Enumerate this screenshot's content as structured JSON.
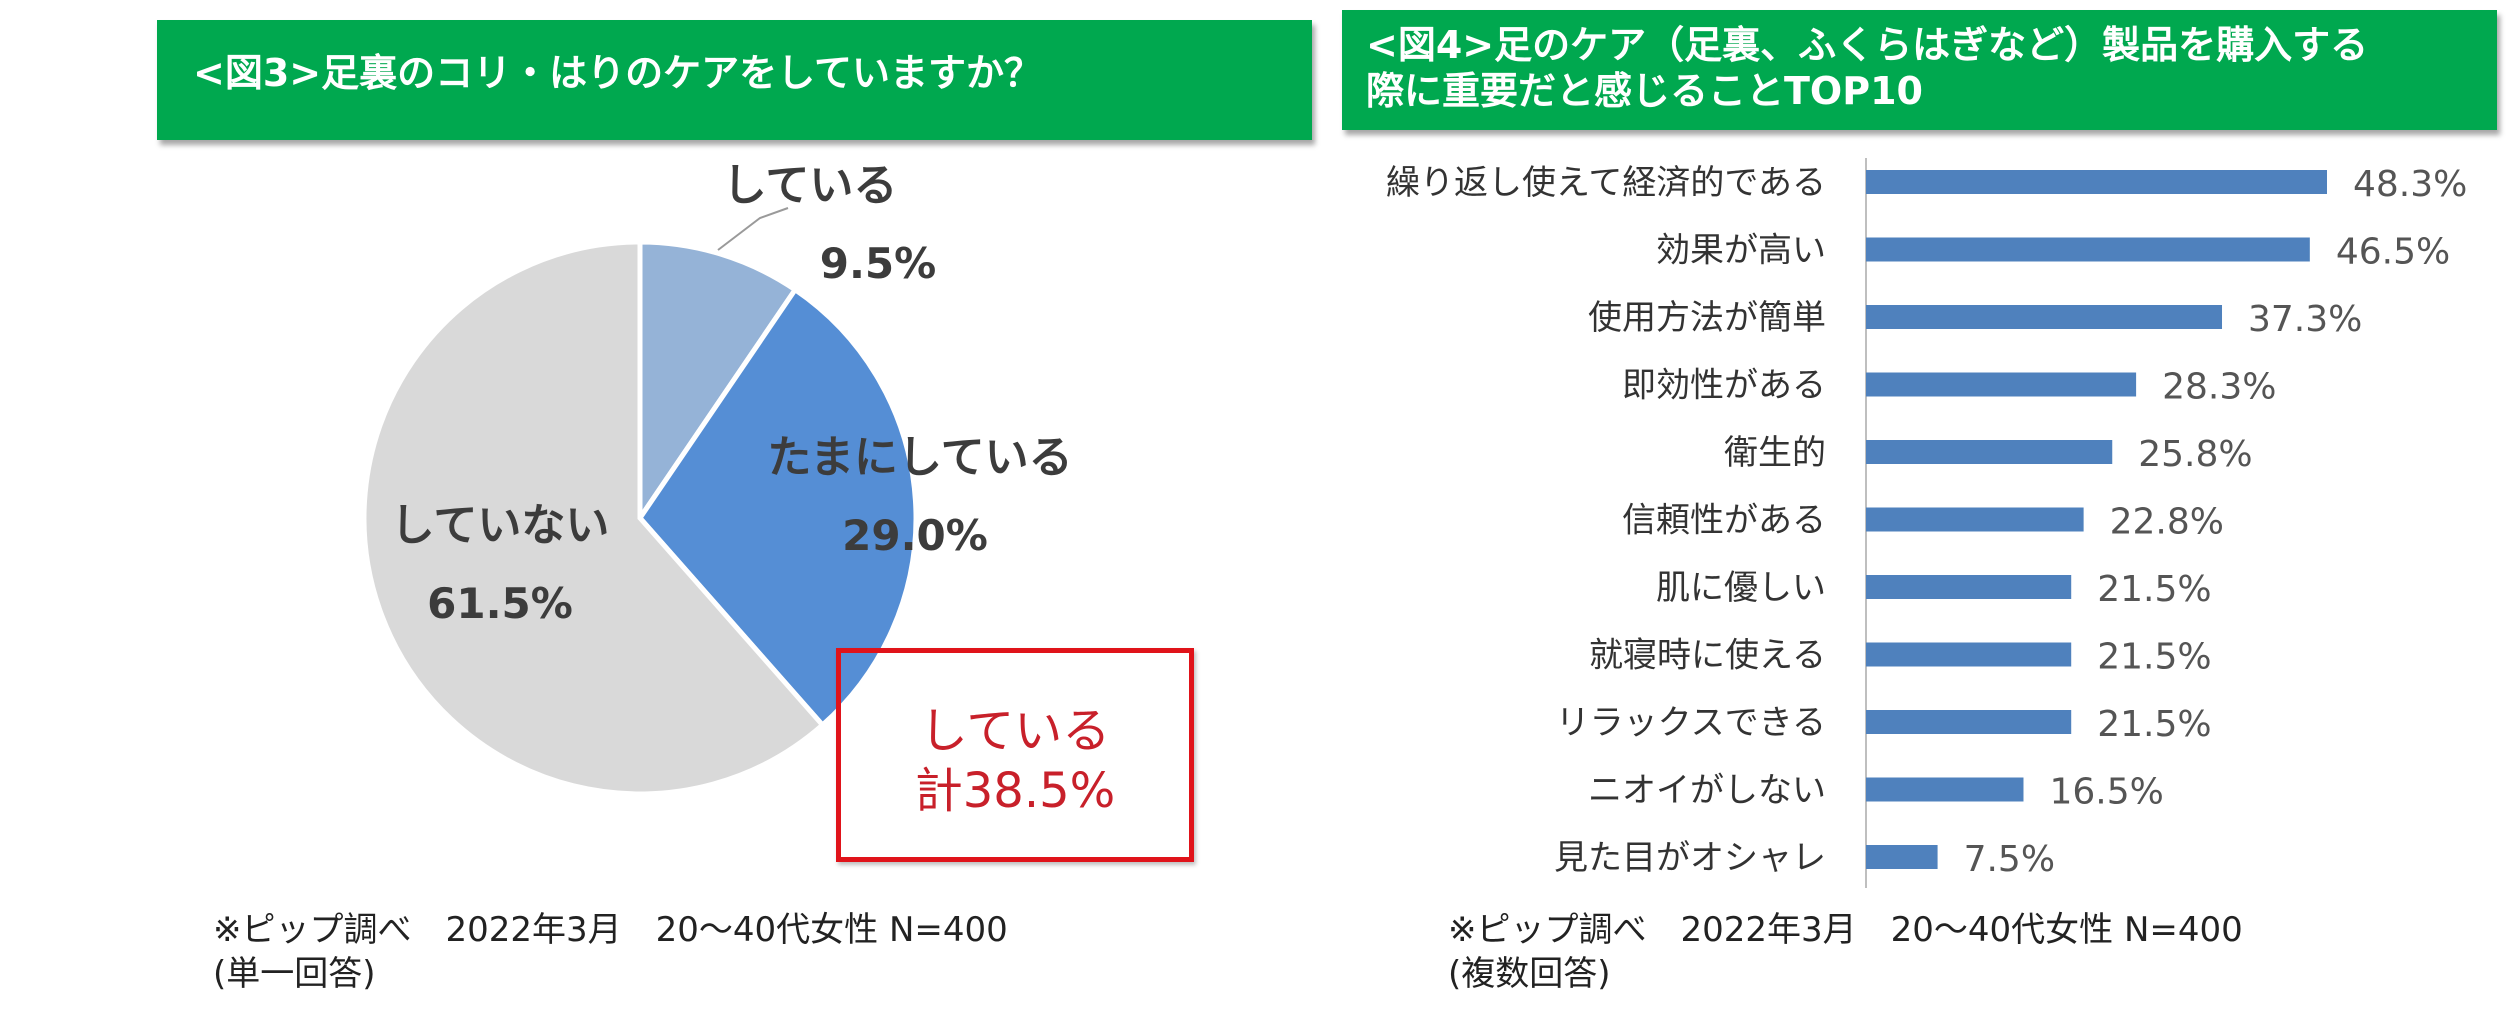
{
  "charts": {
    "left_title": "<図3>足裏のコリ・はりのケアをしていますか？",
    "right_title": "<図4>足のケア（足裏、ふくらはぎなど）製品を購入する際に重要だと感じることTOP10"
  },
  "callout": {
    "line1": "している",
    "line2": "計38.5%"
  },
  "footnotes": {
    "left_line1": "※ピップ調べ　2022年3月　20～40代女性 N=400",
    "left_line2": "(単一回答)",
    "right_line1": "※ピップ調べ　2022年3月　20～40代女性 N=400",
    "right_line2": "(複数回答)"
  },
  "chart_data": [
    {
      "type": "pie",
      "title": "<図3>足裏のコリ・はりのケアをしていますか？",
      "categories": [
        "している",
        "たまにしている",
        "していない"
      ],
      "values": [
        9.5,
        29.0,
        61.5
      ],
      "value_labels": [
        "9.5%",
        "29.0%",
        "61.5%"
      ],
      "colors": [
        "#95b3d7",
        "#558ed5",
        "#d9d9d9"
      ],
      "unit": "%",
      "legend": "none"
    },
    {
      "type": "bar",
      "orientation": "horizontal",
      "title": "<図4>足のケア（足裏、ふくらはぎなど）製品を購入する際に重要だと感じることTOP10",
      "categories": [
        "繰り返し使えて経済的である",
        "効果が高い",
        "使用方法が簡単",
        "即効性がある",
        "衛生的",
        "信頼性がある",
        "肌に優しい",
        "就寝時に使える",
        "リラックスできる",
        "ニオイがしない",
        "見た目がオシャレ"
      ],
      "values": [
        48.3,
        46.5,
        37.3,
        28.3,
        25.8,
        22.8,
        21.5,
        21.5,
        21.5,
        16.5,
        7.5
      ],
      "value_labels": [
        "48.3%",
        "46.5%",
        "37.3%",
        "28.3%",
        "25.8%",
        "22.8%",
        "21.5%",
        "21.5%",
        "21.5%",
        "16.5%",
        "7.5%"
      ],
      "unit": "%",
      "xlim": [
        0,
        55
      ],
      "bar_color": "#4f81bd",
      "grid": false,
      "legend": "none"
    }
  ]
}
